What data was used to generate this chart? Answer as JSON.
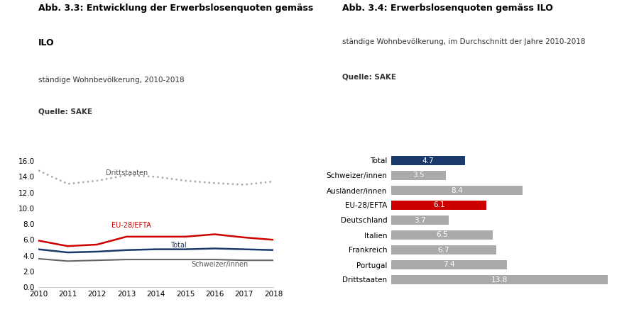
{
  "left_title1": "Abb. 3.3: Entwicklung der Erwerbslosenquoten gemäss",
  "left_title2": "ILO",
  "left_subtitle": "ständige Wohnbevölkerung, 2010-2018",
  "left_source": "Quelle: SAKE",
  "years": [
    2010,
    2011,
    2012,
    2013,
    2014,
    2015,
    2016,
    2017,
    2018
  ],
  "drittstaaten": [
    14.8,
    13.1,
    13.5,
    14.2,
    14.0,
    13.5,
    13.2,
    13.0,
    13.4
  ],
  "eu28efta": [
    5.9,
    5.2,
    5.4,
    6.4,
    6.4,
    6.4,
    6.7,
    6.3,
    6.0
  ],
  "total": [
    4.8,
    4.4,
    4.5,
    4.7,
    4.8,
    4.8,
    4.9,
    4.8,
    4.7
  ],
  "schweizer": [
    3.6,
    3.3,
    3.4,
    3.5,
    3.5,
    3.5,
    3.5,
    3.4,
    3.4
  ],
  "line_colors": {
    "drittstaaten": "#aaaaaa",
    "eu28efta": "#cc0000",
    "total": "#1a3a6b",
    "schweizer": "#666666"
  },
  "ylim_left": [
    0.0,
    17.0
  ],
  "yticks_left": [
    0.0,
    2.0,
    4.0,
    6.0,
    8.0,
    10.0,
    12.0,
    14.0,
    16.0
  ],
  "right_title": "Abb. 3.4: Erwerbslosenquoten gemäss ILO",
  "right_subtitle": "ständige Wohnbevölkerung, im Durchschnitt der Jahre 2010-2018",
  "right_source": "Quelle: SAKE",
  "bar_categories": [
    "Total",
    "Schweizer/innen",
    "Ausländer/innen",
    "EU-28/EFTA",
    "Deutschland",
    "Italien",
    "Frankreich",
    "Portugal",
    "Drittstaaten"
  ],
  "bar_values": [
    4.7,
    3.5,
    8.4,
    6.1,
    3.7,
    6.5,
    6.7,
    7.4,
    13.8
  ],
  "bar_colors": [
    "#1a3a6b",
    "#aaaaaa",
    "#aaaaaa",
    "#cc0000",
    "#aaaaaa",
    "#aaaaaa",
    "#aaaaaa",
    "#aaaaaa",
    "#aaaaaa"
  ],
  "xlim_right": [
    0,
    15
  ]
}
